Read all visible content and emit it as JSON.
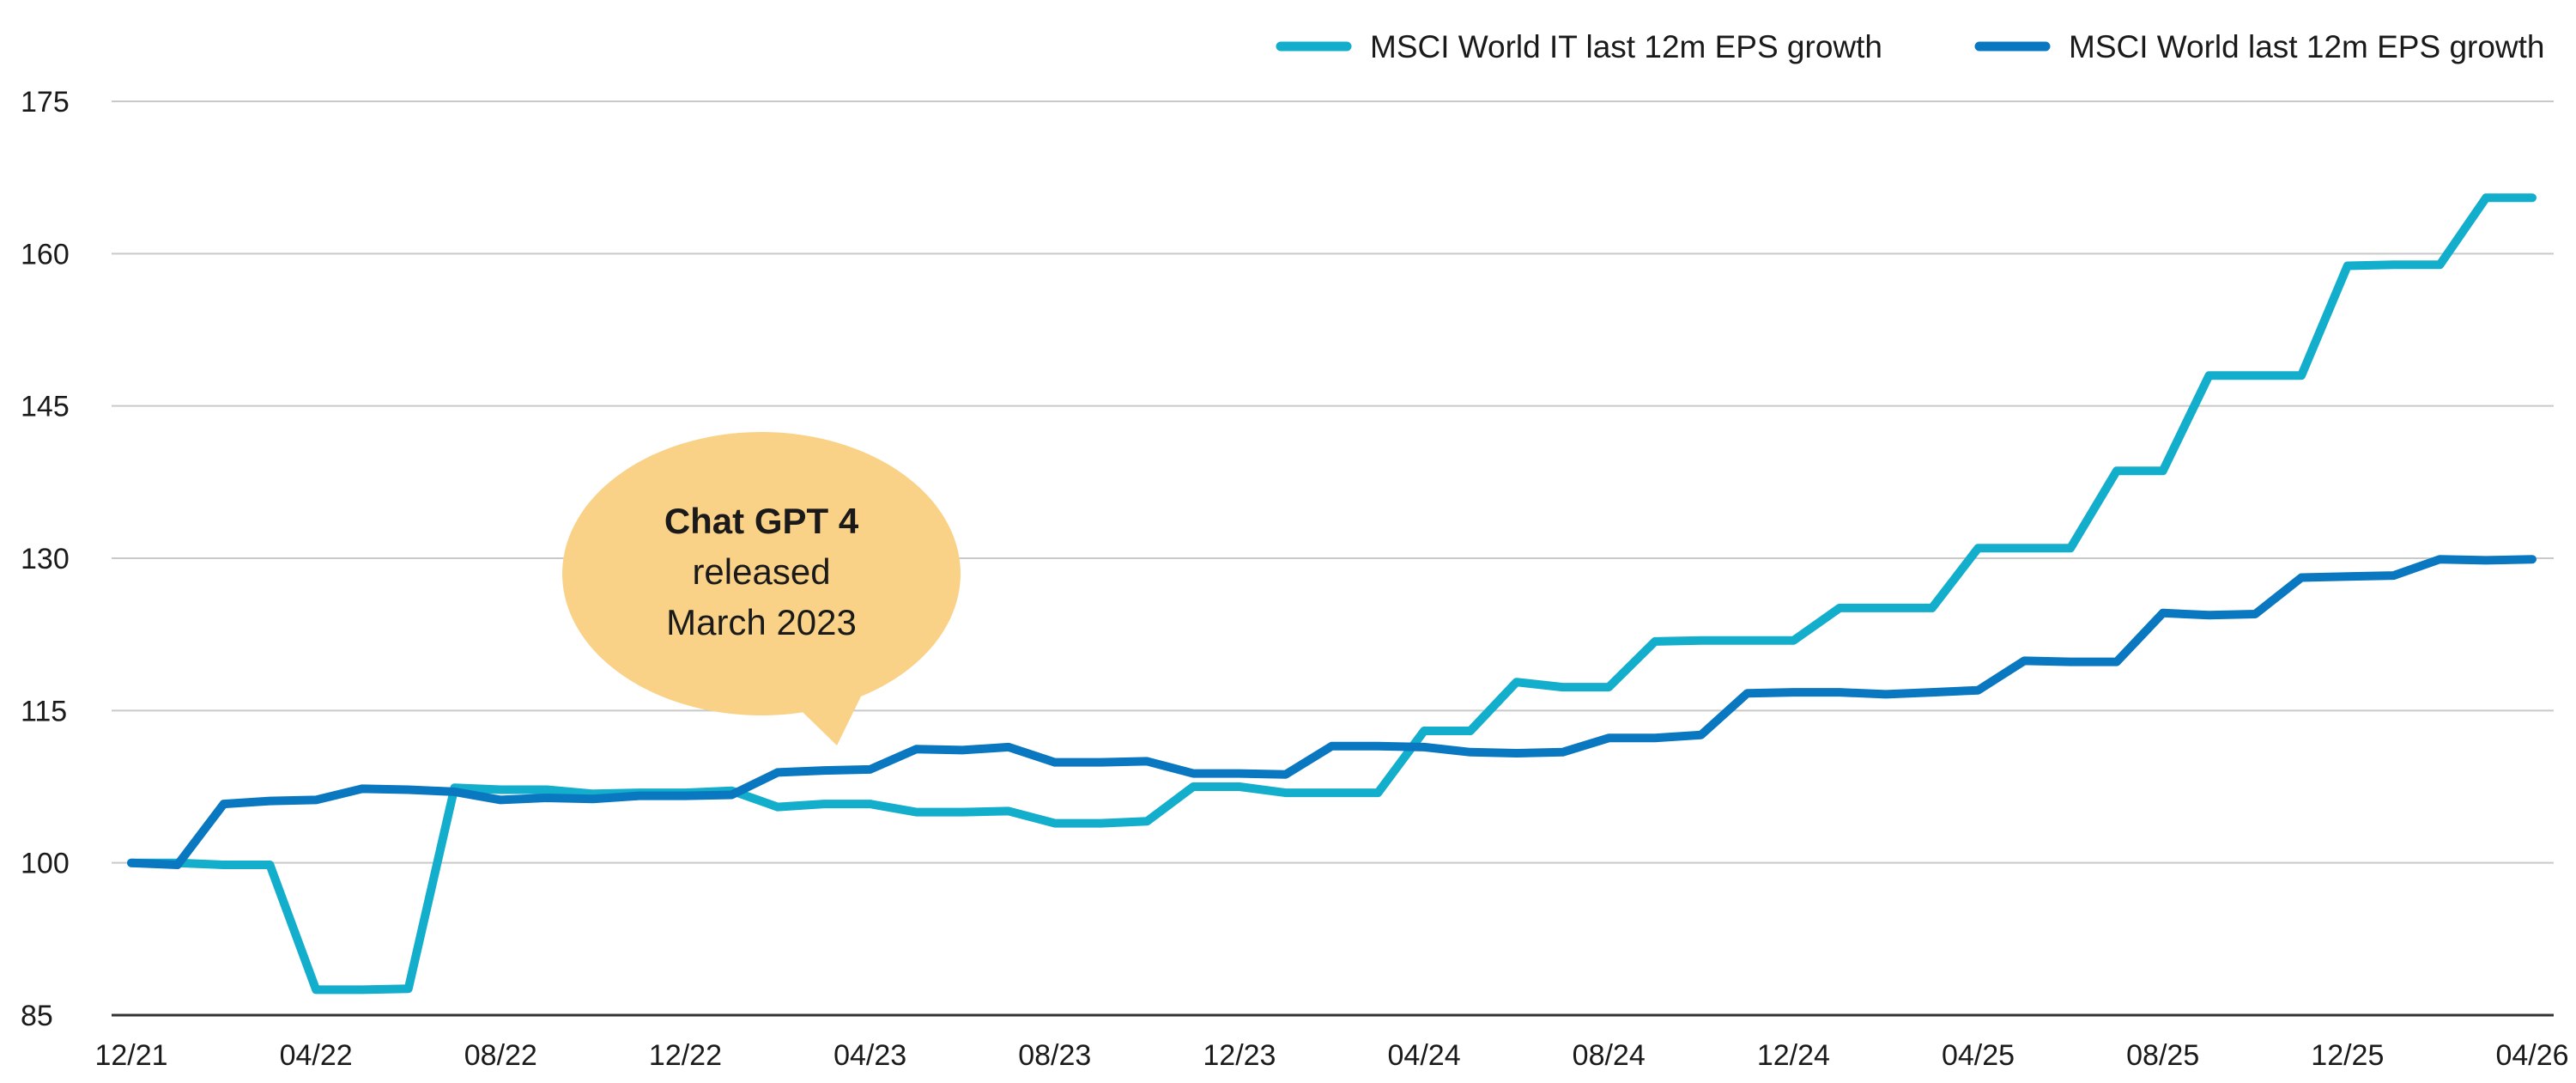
{
  "chart_data": {
    "type": "line",
    "title": "",
    "xlabel": "",
    "ylabel": "",
    "ylim": [
      85,
      175
    ],
    "yticks": [
      85,
      100,
      115,
      130,
      145,
      160,
      175
    ],
    "xticks": [
      "12/21",
      "04/22",
      "08/22",
      "12/22",
      "04/23",
      "08/23",
      "12/23",
      "04/24",
      "08/24",
      "12/24",
      "04/25",
      "08/25",
      "12/25",
      "04/26"
    ],
    "grid": "horizontal",
    "legend_position": "top-right",
    "x": [
      "12/21",
      "01/22",
      "02/22",
      "03/22",
      "04/22",
      "05/22",
      "06/22",
      "07/22",
      "08/22",
      "09/22",
      "10/22",
      "11/22",
      "12/22",
      "01/23",
      "02/23",
      "03/23",
      "04/23",
      "05/23",
      "06/23",
      "07/23",
      "08/23",
      "09/23",
      "10/23",
      "11/23",
      "12/23",
      "01/24",
      "02/24",
      "03/24",
      "04/24",
      "05/24",
      "06/24",
      "07/24",
      "08/24",
      "09/24",
      "10/24",
      "11/24",
      "12/24",
      "01/25",
      "02/25",
      "03/25",
      "04/25",
      "05/25",
      "06/25",
      "07/25",
      "08/25",
      "09/25",
      "10/25",
      "11/25",
      "12/25",
      "01/26",
      "02/26",
      "03/26",
      "04/26"
    ],
    "series": [
      {
        "name": "MSCI World IT last 12m EPS growth",
        "color": "#12AECB",
        "values": [
          100,
          100,
          99.8,
          99.8,
          87.5,
          87.5,
          87.6,
          107.4,
          107.2,
          107.2,
          106.8,
          106.9,
          106.9,
          107.1,
          105.5,
          105.8,
          105.8,
          105.0,
          105.0,
          105.1,
          103.9,
          103.9,
          104.1,
          107.5,
          107.5,
          106.9,
          106.9,
          106.9,
          113,
          113,
          117.8,
          117.3,
          117.3,
          121.8,
          121.9,
          121.9,
          121.9,
          125.1,
          125.1,
          125.1,
          131,
          131,
          131,
          138.6,
          138.6,
          148,
          148,
          148,
          158.8,
          158.9,
          158.9,
          165.5,
          165.5
        ]
      },
      {
        "name": "MSCI World last 12m EPS growth",
        "color": "#0978C0",
        "values": [
          100,
          99.8,
          105.8,
          106.1,
          106.2,
          107.3,
          107.2,
          107.0,
          106.2,
          106.4,
          106.3,
          106.6,
          106.6,
          106.7,
          108.9,
          109.1,
          109.2,
          111.2,
          111.1,
          111.4,
          109.9,
          109.9,
          110.0,
          108.8,
          108.8,
          108.7,
          111.5,
          111.5,
          111.4,
          110.9,
          110.8,
          110.9,
          112.3,
          112.3,
          112.6,
          116.7,
          116.8,
          116.8,
          116.6,
          116.8,
          117.0,
          119.9,
          119.8,
          119.8,
          124.6,
          124.4,
          124.5,
          128.1,
          128.2,
          128.3,
          129.9,
          129.8,
          129.9
        ]
      }
    ],
    "annotation": {
      "line1": "Chat GPT 4",
      "line2": "released",
      "line3": "March 2023",
      "color": "#FAD287"
    }
  }
}
